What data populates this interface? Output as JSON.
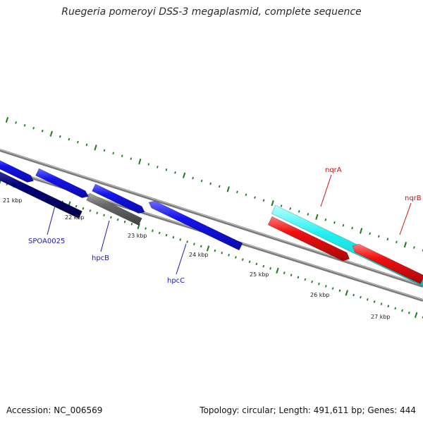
{
  "title": "Ruegeria pomeroyi DSS-3 megaplasmid, complete sequence",
  "footer": {
    "accession": "Accession: NC_006569",
    "summary": "Topology: circular; Length: 491,611 bp; Genes: 444"
  },
  "scale": {
    "ticks": [
      {
        "label": "21 kbp"
      },
      {
        "label": "22 kbp"
      },
      {
        "label": "23 kbp"
      },
      {
        "label": "24 kbp"
      },
      {
        "label": "25 kbp"
      },
      {
        "label": "26 kbp"
      },
      {
        "label": "27 kbp"
      }
    ]
  },
  "gene_labels": [
    {
      "name": "SPOA0025",
      "color": "#1a1aa8"
    },
    {
      "name": "hpcB",
      "color": "#1a1aa8"
    },
    {
      "name": "hpcC",
      "color": "#1a1aa8"
    },
    {
      "name": "nqrA",
      "color": "#cc1111"
    },
    {
      "name": "nqrB",
      "color": "#cc1111"
    }
  ],
  "colors": {
    "blue_gene": "#1010ee",
    "navy_gene": "#000070",
    "gray_gene": "#666666",
    "cyan_gene": "#11eeee",
    "red_gene": "#ee1111",
    "backbone": "#808080",
    "ticks": "#1c7a1c"
  }
}
